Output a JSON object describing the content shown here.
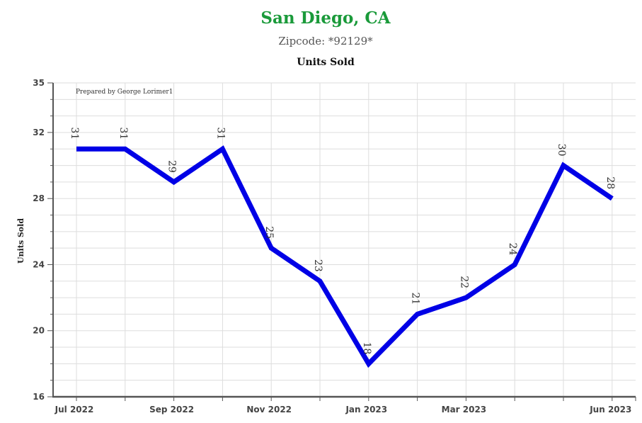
{
  "title": "San Diego, CA",
  "subtitle": "Zipcode: *92129*",
  "credit": "Prepared by George Lorimer1",
  "colors": {
    "title": "#1a9a3a",
    "line": "#0000e6",
    "grid": "#dddddd",
    "axis": "#555555"
  },
  "chart_data": {
    "type": "line",
    "title": "Units Sold",
    "ylabel": "Units Sold",
    "xlabel": "",
    "ylim": [
      16,
      35
    ],
    "yticks": [
      16,
      20,
      24,
      28,
      32,
      35
    ],
    "x_tick_labels": [
      "Jul 2022",
      "Sep 2022",
      "Nov 2022",
      "Jan 2023",
      "Mar 2023",
      "Jun 2023"
    ],
    "grid": true,
    "series": [
      {
        "x": [
          "Jul 2022",
          "Aug 2022",
          "Sep 2022",
          "Oct 2022",
          "Nov 2022",
          "Dec 2022",
          "Jan 2023",
          "Feb 2023",
          "Mar 2023",
          "Apr 2023",
          "May 2023",
          "Jun 2023"
        ],
        "values": [
          31,
          31,
          29,
          31,
          25,
          23,
          18,
          21,
          22,
          24,
          30,
          28
        ]
      }
    ]
  }
}
